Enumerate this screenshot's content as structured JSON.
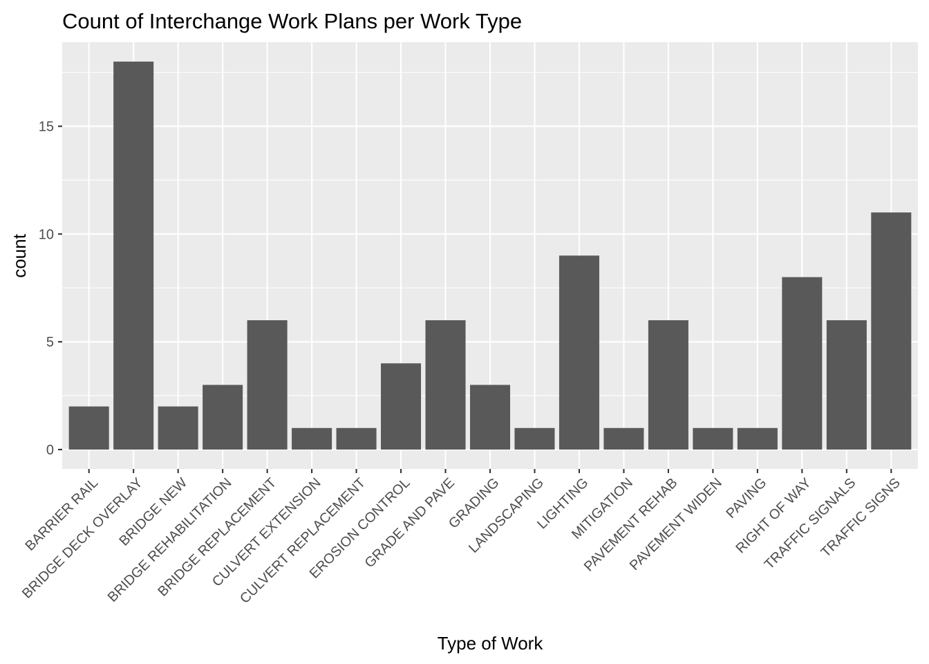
{
  "chart_data": {
    "type": "bar",
    "title": "Count of Interchange Work Plans per Work Type",
    "xlabel": "Type of Work",
    "ylabel": "count",
    "categories": [
      "BARRIER RAIL",
      "BRIDGE DECK OVERLAY",
      "BRIDGE NEW",
      "BRIDGE REHABILITATION",
      "BRIDGE REPLACEMENT",
      "CULVERT EXTENSION",
      "CULVERT REPLACEMENT",
      "EROSION CONTROL",
      "GRADE AND PAVE",
      "GRADING",
      "LANDSCAPING",
      "LIGHTING",
      "MITIGATION",
      "PAVEMENT REHAB",
      "PAVEMENT WIDEN",
      "PAVING",
      "RIGHT OF WAY",
      "TRAFFIC SIGNALS",
      "TRAFFIC SIGNS"
    ],
    "values": [
      2,
      18,
      2,
      3,
      6,
      1,
      1,
      4,
      6,
      3,
      1,
      9,
      1,
      6,
      1,
      1,
      8,
      6,
      11
    ],
    "yticks": [
      "0",
      "5",
      "10",
      "15"
    ],
    "ylim": [
      -0.9,
      18.9
    ],
    "grid": true,
    "colors": {
      "bar": "#595959",
      "panel": "#ebebeb",
      "grid": "#ffffff"
    }
  }
}
